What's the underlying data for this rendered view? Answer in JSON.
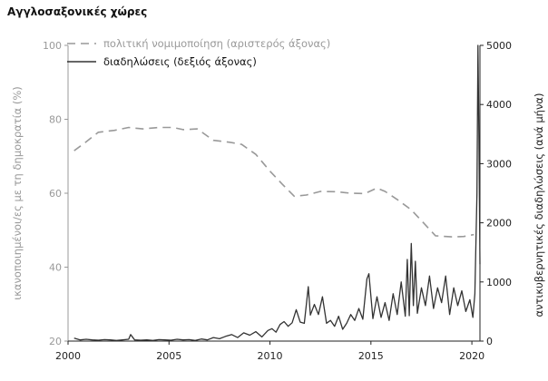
{
  "chart_data": {
    "type": "line",
    "title": "Αγγλοσαξονικές χώρες",
    "xlim": [
      2000,
      2020.4
    ],
    "xticks": [
      2000,
      2005,
      2010,
      2015,
      2020
    ],
    "ylabel_left": "ικανοποιημένοι/ες με τη δημοκρατία (%)",
    "ylim_left": [
      20,
      100
    ],
    "yticks_left": [
      20,
      40,
      60,
      80,
      100
    ],
    "ylabel_right": "αντικυβερνητικές διαδηλώσεις (ανά μήνα)",
    "ylim_right": [
      0,
      5000
    ],
    "yticks_right": [
      0,
      1000,
      2000,
      3000,
      4000,
      5000
    ],
    "legend_position": "top",
    "colors": {
      "legitimacy": "#999999",
      "protests": "#333333"
    },
    "series": [
      {
        "name": "πολιτική νομιμοποίηση (αριστερός άξονας)",
        "axis": "left",
        "style": "dashed",
        "x": [
          2000.3,
          2000.8,
          2001.5,
          2002.3,
          2003.0,
          2003.7,
          2004.5,
          2005.2,
          2005.7,
          2006.4,
          2007.2,
          2008.0,
          2008.6,
          2009.3,
          2010.0,
          2010.6,
          2011.2,
          2011.8,
          2012.5,
          2013.3,
          2014.0,
          2014.7,
          2015.3,
          2015.7,
          2016.3,
          2017.0,
          2017.6,
          2018.2,
          2019.0,
          2019.6,
          2020.1
        ],
        "y": [
          71.5,
          73.5,
          76.5,
          77,
          77.8,
          77.4,
          77.8,
          77.8,
          77.2,
          77.4,
          74.3,
          73.8,
          73.2,
          70.5,
          66,
          62.5,
          59.2,
          59.5,
          60.5,
          60.4,
          60,
          59.9,
          61.4,
          60.5,
          58.3,
          55.5,
          52,
          48.5,
          48.2,
          48.3,
          48.8
        ]
      },
      {
        "name": "διαδηλώσεις (δεξιός άξονας)",
        "axis": "right",
        "style": "solid",
        "x": [
          2000.3,
          2000.6,
          2000.9,
          2001.2,
          2001.5,
          2001.8,
          2002.1,
          2002.4,
          2002.7,
          2003.0,
          2003.1,
          2003.3,
          2003.6,
          2003.9,
          2004.2,
          2004.5,
          2004.8,
          2005.1,
          2005.4,
          2005.7,
          2006.0,
          2006.3,
          2006.6,
          2006.9,
          2007.2,
          2007.5,
          2007.8,
          2008.1,
          2008.4,
          2008.7,
          2009.0,
          2009.3,
          2009.6,
          2009.9,
          2010.1,
          2010.3,
          2010.5,
          2010.7,
          2010.9,
          2011.1,
          2011.3,
          2011.5,
          2011.7,
          2011.9,
          2012.0,
          2012.2,
          2012.4,
          2012.6,
          2012.8,
          2013.0,
          2013.2,
          2013.4,
          2013.6,
          2013.8,
          2014.0,
          2014.2,
          2014.4,
          2014.6,
          2014.8,
          2014.9,
          2015.1,
          2015.3,
          2015.5,
          2015.7,
          2015.9,
          2016.1,
          2016.3,
          2016.5,
          2016.7,
          2016.8,
          2016.9,
          2017.0,
          2017.1,
          2017.2,
          2017.3,
          2017.5,
          2017.7,
          2017.9,
          2018.1,
          2018.3,
          2018.5,
          2018.7,
          2018.9,
          2019.1,
          2019.3,
          2019.5,
          2019.7,
          2019.9,
          2020.05,
          2020.15,
          2020.25,
          2020.3,
          2020.35,
          2020.4
        ],
        "y": [
          50,
          20,
          30,
          20,
          15,
          25,
          20,
          10,
          20,
          30,
          110,
          20,
          15,
          20,
          10,
          25,
          20,
          15,
          30,
          20,
          25,
          10,
          35,
          20,
          60,
          40,
          80,
          110,
          60,
          140,
          100,
          160,
          70,
          180,
          210,
          150,
          280,
          330,
          250,
          310,
          530,
          320,
          300,
          920,
          440,
          620,
          450,
          750,
          300,
          350,
          250,
          420,
          200,
          300,
          450,
          350,
          550,
          370,
          1050,
          1140,
          380,
          750,
          400,
          650,
          350,
          800,
          450,
          1000,
          420,
          1380,
          430,
          1650,
          600,
          1350,
          470,
          900,
          600,
          1100,
          550,
          900,
          650,
          1100,
          450,
          900,
          600,
          850,
          500,
          700,
          400,
          800,
          2500,
          5000,
          3400,
          1300
        ]
      }
    ]
  }
}
